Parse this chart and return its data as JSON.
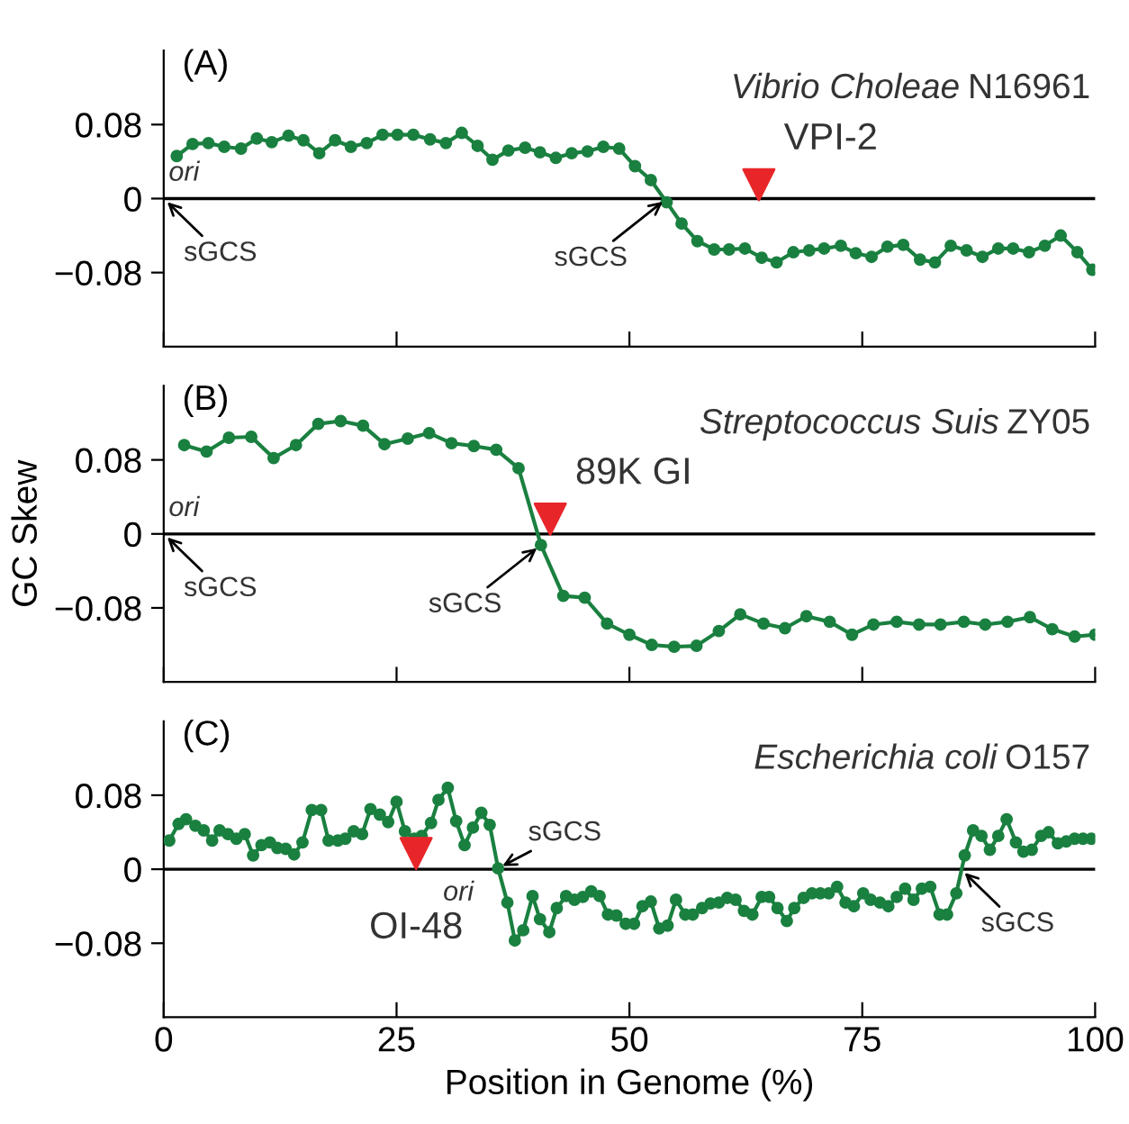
{
  "chart_data": [
    {
      "type": "line",
      "title": "Vibrio Choleae N16961",
      "xlim": [
        0,
        100
      ],
      "xticks": [
        0,
        25,
        50,
        75,
        100
      ],
      "ylim": [
        -0.16,
        0.16
      ],
      "yticks": [
        -0.08,
        0,
        0.08
      ],
      "tick_labels": "y",
      "marker": "circle",
      "grid": false,
      "legend": false,
      "ref_lines": [
        {
          "axis": "y",
          "value": 0,
          "color": "#000000"
        }
      ],
      "annotations": [
        "(A)",
        "ori",
        {
          "text": "sGCS",
          "x": 0,
          "y": 0
        },
        {
          "text": "sGCS",
          "x": 54.0,
          "y": 0
        }
      ],
      "series": [
        {
          "color": "#1a8040",
          "x": [
            1.4,
            3.1,
            4.8,
            6.5,
            8.3,
            10.0,
            11.6,
            13.4,
            15.0,
            16.7,
            18.4,
            20.1,
            21.8,
            23.5,
            25.1,
            26.8,
            28.6,
            30.3,
            32.0,
            33.7,
            35.3,
            37.0,
            38.8,
            40.4,
            42.1,
            43.8,
            45.5,
            47.2,
            48.9,
            50.6,
            52.3,
            54.0,
            55.6,
            57.3,
            59.1,
            60.7,
            62.4,
            64.2,
            65.8,
            67.6,
            69.3,
            70.9,
            72.7,
            74.3,
            76.0,
            77.7,
            79.4,
            81.2,
            82.8,
            84.5,
            86.2,
            87.9,
            89.6,
            91.2,
            92.9,
            94.6,
            96.3,
            98.1,
            99.7
          ],
          "values": [
            0.046,
            0.059,
            0.06,
            0.056,
            0.054,
            0.065,
            0.061,
            0.068,
            0.063,
            0.049,
            0.063,
            0.056,
            0.06,
            0.069,
            0.069,
            0.069,
            0.064,
            0.06,
            0.071,
            0.057,
            0.042,
            0.052,
            0.055,
            0.05,
            0.044,
            0.049,
            0.051,
            0.056,
            0.054,
            0.035,
            0.02,
            -0.004,
            -0.027,
            -0.046,
            -0.055,
            -0.055,
            -0.054,
            -0.064,
            -0.069,
            -0.058,
            -0.056,
            -0.054,
            -0.051,
            -0.059,
            -0.063,
            -0.052,
            -0.05,
            -0.066,
            -0.069,
            -0.051,
            -0.056,
            -0.063,
            -0.054,
            -0.054,
            -0.058,
            -0.051,
            -0.04,
            -0.058,
            -0.077
          ]
        },
        {
          "type": "scatter",
          "name": "VPI-2",
          "color": "#e8262a",
          "marker": "triangle",
          "x": [
            63.9
          ],
          "values": [
            0.015
          ]
        }
      ]
    },
    {
      "type": "line",
      "title": "Streptococcus Suis ZY05",
      "ylabel": "GC Skew",
      "xlim": [
        0,
        100
      ],
      "xticks": [
        0,
        25,
        50,
        75,
        100
      ],
      "ylim": [
        -0.16,
        0.16
      ],
      "yticks": [
        -0.08,
        0,
        0.08
      ],
      "tick_labels": "y",
      "marker": "circle",
      "grid": false,
      "legend": false,
      "ref_lines": [
        {
          "axis": "y",
          "value": 0,
          "color": "#000000"
        }
      ],
      "annotations": [
        "(B)",
        "ori",
        {
          "text": "sGCS",
          "x": 0,
          "y": 0
        },
        {
          "text": "sGCS",
          "x": 40.5,
          "y": -0.012
        }
      ],
      "series": [
        {
          "color": "#1a8040",
          "x": [
            2.2,
            4.6,
            7.0,
            9.4,
            11.8,
            14.2,
            16.6,
            19.0,
            21.4,
            23.7,
            26.2,
            28.5,
            30.9,
            33.3,
            35.7,
            38.1,
            40.5,
            42.9,
            45.2,
            47.6,
            50.0,
            52.4,
            54.8,
            57.2,
            59.6,
            61.9,
            64.4,
            66.7,
            69.0,
            71.5,
            73.9,
            76.2,
            78.7,
            81.1,
            83.4,
            85.9,
            88.2,
            90.6,
            93.0,
            95.4,
            97.8,
            100
          ],
          "values": [
            0.096,
            0.089,
            0.104,
            0.105,
            0.082,
            0.096,
            0.119,
            0.122,
            0.117,
            0.097,
            0.103,
            0.109,
            0.098,
            0.095,
            0.091,
            0.071,
            -0.012,
            -0.067,
            -0.069,
            -0.097,
            -0.109,
            -0.12,
            -0.122,
            -0.121,
            -0.105,
            -0.087,
            -0.097,
            -0.102,
            -0.089,
            -0.095,
            -0.109,
            -0.098,
            -0.095,
            -0.098,
            -0.098,
            -0.095,
            -0.098,
            -0.095,
            -0.09,
            -0.103,
            -0.111,
            -0.109
          ]
        },
        {
          "type": "scatter",
          "name": "89K GI",
          "color": "#e8262a",
          "marker": "triangle",
          "x": [
            41.5
          ],
          "values": [
            0.016
          ]
        }
      ]
    },
    {
      "type": "line",
      "title": "Escherichia coli O157",
      "xlabel": "Position in Genome (%)",
      "xlim": [
        0,
        100
      ],
      "xticks": [
        0,
        25,
        50,
        75,
        100
      ],
      "ylim": [
        -0.16,
        0.16
      ],
      "yticks": [
        -0.08,
        0,
        0.08
      ],
      "marker": "circle",
      "grid": false,
      "legend": false,
      "ref_lines": [
        {
          "axis": "y",
          "value": 0,
          "color": "#000000"
        }
      ],
      "annotations": [
        "(C)",
        "ori",
        {
          "text": "sGCS",
          "x": 35.9,
          "y": 0.001
        },
        {
          "text": "sGCS",
          "x": 85.6,
          "y": 0
        }
      ],
      "series": [
        {
          "color": "#1a8040",
          "x": [
            0.6,
            1.6,
            2.4,
            3.4,
            4.3,
            5.2,
            6.0,
            6.9,
            7.8,
            8.7,
            9.6,
            10.5,
            11.4,
            12.2,
            13.1,
            14.0,
            14.9,
            15.9,
            16.9,
            17.7,
            18.7,
            19.5,
            20.4,
            21.3,
            22.2,
            23.2,
            24.1,
            25.0,
            25.9,
            26.9,
            27.7,
            28.7,
            29.5,
            30.5,
            31.4,
            32.3,
            33.2,
            34.1,
            35.0,
            35.9,
            36.9,
            37.7,
            38.6,
            39.6,
            40.4,
            41.4,
            42.2,
            43.2,
            44.1,
            45.0,
            45.9,
            46.8,
            47.7,
            48.6,
            49.6,
            50.5,
            51.4,
            52.3,
            53.2,
            54.1,
            55.0,
            56.0,
            56.8,
            57.8,
            58.7,
            59.6,
            60.5,
            61.4,
            62.3,
            63.2,
            64.2,
            65.0,
            65.9,
            66.9,
            67.7,
            68.7,
            69.6,
            70.5,
            71.4,
            72.3,
            73.2,
            74.1,
            75.1,
            75.9,
            76.9,
            77.8,
            78.7,
            79.6,
            80.5,
            81.4,
            82.3,
            83.3,
            84.1,
            85.1,
            86.0,
            86.9,
            87.8,
            88.7,
            89.6,
            90.5,
            91.5,
            92.3,
            93.2,
            94.2,
            95.0,
            96.0,
            96.9,
            97.8,
            98.7,
            99.6
          ],
          "values": [
            0.031,
            0.049,
            0.054,
            0.047,
            0.042,
            0.031,
            0.042,
            0.038,
            0.033,
            0.038,
            0.015,
            0.026,
            0.029,
            0.023,
            0.022,
            0.016,
            0.029,
            0.064,
            0.064,
            0.031,
            0.031,
            0.033,
            0.041,
            0.038,
            0.065,
            0.059,
            0.051,
            0.073,
            0.041,
            0.033,
            0.036,
            0.05,
            0.075,
            0.088,
            0.052,
            0.026,
            0.045,
            0.061,
            0.048,
            0.001,
            -0.036,
            -0.077,
            -0.066,
            -0.029,
            -0.054,
            -0.068,
            -0.042,
            -0.029,
            -0.033,
            -0.03,
            -0.024,
            -0.029,
            -0.049,
            -0.05,
            -0.059,
            -0.059,
            -0.04,
            -0.035,
            -0.064,
            -0.061,
            -0.033,
            -0.049,
            -0.049,
            -0.042,
            -0.037,
            -0.036,
            -0.031,
            -0.033,
            -0.045,
            -0.049,
            -0.03,
            -0.03,
            -0.042,
            -0.056,
            -0.042,
            -0.031,
            -0.026,
            -0.026,
            -0.026,
            -0.019,
            -0.036,
            -0.04,
            -0.026,
            -0.033,
            -0.036,
            -0.04,
            -0.03,
            -0.021,
            -0.033,
            -0.021,
            -0.019,
            -0.049,
            -0.049,
            -0.026,
            0.015,
            0.042,
            0.036,
            0.021,
            0.036,
            0.054,
            0.029,
            0.019,
            0.021,
            0.036,
            0.04,
            0.028,
            0.03,
            0.033,
            0.033,
            0.033
          ]
        },
        {
          "type": "scatter",
          "name": "OI-48",
          "color": "#e8262a",
          "marker": "triangle",
          "x": [
            27.1
          ],
          "values": [
            0.017
          ]
        }
      ]
    }
  ]
}
